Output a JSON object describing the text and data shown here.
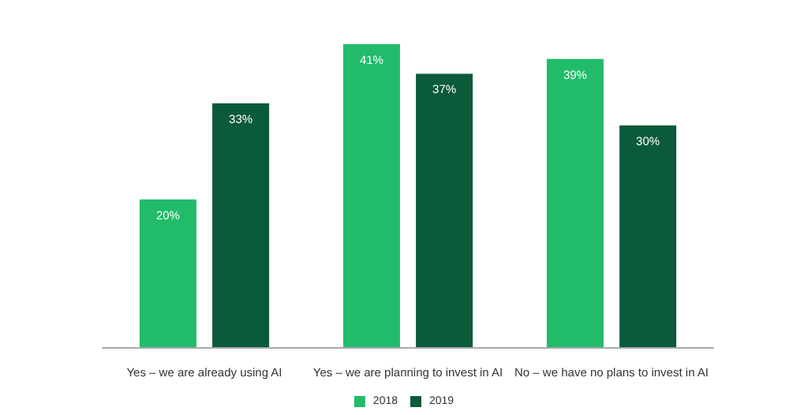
{
  "chart_data": {
    "type": "bar",
    "categories": [
      "Yes – we are already using AI",
      "Yes – we are planning to invest in AI",
      "No – we have no plans to invest in AI"
    ],
    "series": [
      {
        "name": "2018",
        "color": "#21bb6a",
        "values": [
          20,
          41,
          39
        ],
        "value_labels": [
          "20%",
          "41%",
          "39%"
        ]
      },
      {
        "name": "2019",
        "color": "#0b5a3a",
        "values": [
          33,
          37,
          30
        ],
        "value_labels": [
          "33%",
          "37%",
          "30%"
        ]
      }
    ],
    "legend": "bottom"
  }
}
